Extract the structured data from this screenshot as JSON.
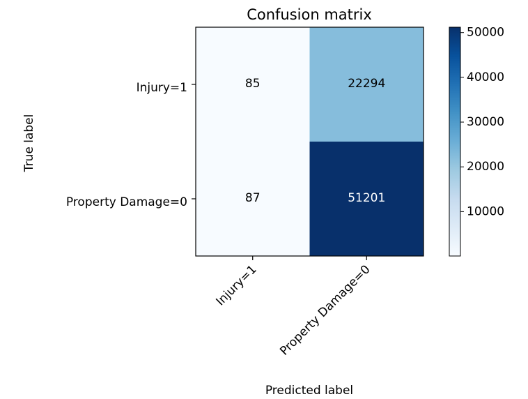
{
  "chart_data": {
    "type": "heatmap",
    "title": "Confusion matrix",
    "xlabel": "Predicted label",
    "ylabel": "True label",
    "x_categories": [
      "Injury=1",
      "Property Damage=0"
    ],
    "y_categories": [
      "Injury=1",
      "Property Damage=0"
    ],
    "matrix": [
      [
        85,
        22294
      ],
      [
        87,
        51201
      ]
    ],
    "colormap": "Blues",
    "color_range": [
      85,
      51201
    ],
    "colorbar_ticks": [
      10000,
      20000,
      30000,
      40000,
      50000
    ],
    "tick_labels": {
      "colorbar": [
        "10000",
        "20000",
        "30000",
        "40000",
        "50000"
      ]
    }
  }
}
